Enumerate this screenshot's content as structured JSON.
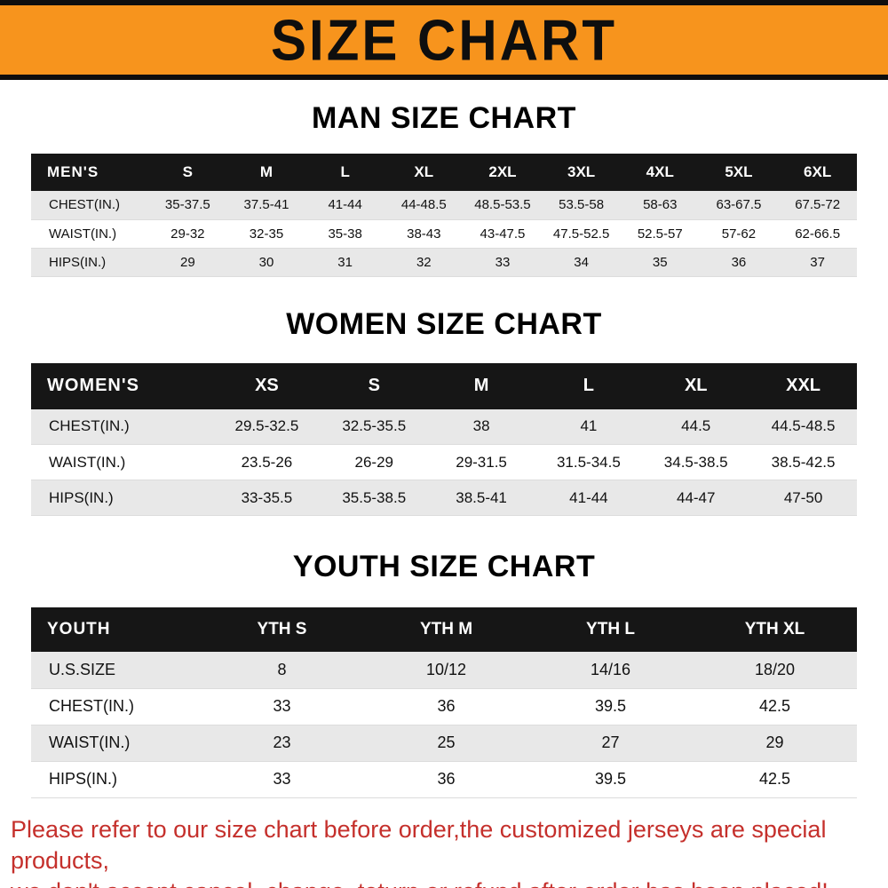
{
  "banner": {
    "title": "SIZE CHART"
  },
  "colors": {
    "banner-bg": "#f7941d",
    "banner-border": "#0e0e0e",
    "table-header-bg": "#161616",
    "stripe-bg": "#e8e8e8",
    "footer-red": "#c5302c"
  },
  "sections": [
    {
      "heading": "MAN SIZE CHART",
      "table": {
        "header_label": "MEN'S",
        "columns": [
          "S",
          "M",
          "L",
          "XL",
          "2XL",
          "3XL",
          "4XL",
          "5XL",
          "6XL"
        ],
        "rows": [
          {
            "label": "CHEST(IN.)",
            "values": [
              "35-37.5",
              "37.5-41",
              "41-44",
              "44-48.5",
              "48.5-53.5",
              "53.5-58",
              "58-63",
              "63-67.5",
              "67.5-72"
            ]
          },
          {
            "label": "WAIST(IN.)",
            "values": [
              "29-32",
              "32-35",
              "35-38",
              "38-43",
              "43-47.5",
              "47.5-52.5",
              "52.5-57",
              "57-62",
              "62-66.5"
            ]
          },
          {
            "label": "HIPS(IN.)",
            "values": [
              "29",
              "30",
              "31",
              "32",
              "33",
              "34",
              "35",
              "36",
              "37"
            ]
          }
        ]
      }
    },
    {
      "heading": "WOMEN SIZE CHART",
      "table": {
        "header_label": "WOMEN'S",
        "columns": [
          "XS",
          "S",
          "M",
          "L",
          "XL",
          "XXL"
        ],
        "rows": [
          {
            "label": "CHEST(IN.)",
            "values": [
              "29.5-32.5",
              "32.5-35.5",
              "38",
              "41",
              "44.5",
              "44.5-48.5"
            ]
          },
          {
            "label": "WAIST(IN.)",
            "values": [
              "23.5-26",
              "26-29",
              "29-31.5",
              "31.5-34.5",
              "34.5-38.5",
              "38.5-42.5"
            ]
          },
          {
            "label": "HIPS(IN.)",
            "values": [
              "33-35.5",
              "35.5-38.5",
              "38.5-41",
              "41-44",
              "44-47",
              "47-50"
            ]
          }
        ]
      }
    },
    {
      "heading": "YOUTH SIZE CHART",
      "table": {
        "header_label": "YOUTH",
        "columns": [
          "YTH S",
          "YTH M",
          "YTH L",
          "YTH XL"
        ],
        "rows": [
          {
            "label": "U.S.SIZE",
            "values": [
              "8",
              "10/12",
              "14/16",
              "18/20"
            ]
          },
          {
            "label": "CHEST(IN.)",
            "values": [
              "33",
              "36",
              "39.5",
              "42.5"
            ]
          },
          {
            "label": "WAIST(IN.)",
            "values": [
              "23",
              "25",
              "27",
              "29"
            ]
          },
          {
            "label": "HIPS(IN.)",
            "values": [
              "33",
              "36",
              "39.5",
              "42.5"
            ]
          }
        ]
      }
    }
  ],
  "footer": {
    "line1": "Please refer to our size chart before order,the customized jerseys are special products,",
    "line2": "we don't accept cancel, change, teturn or refund after order has been placed!"
  }
}
